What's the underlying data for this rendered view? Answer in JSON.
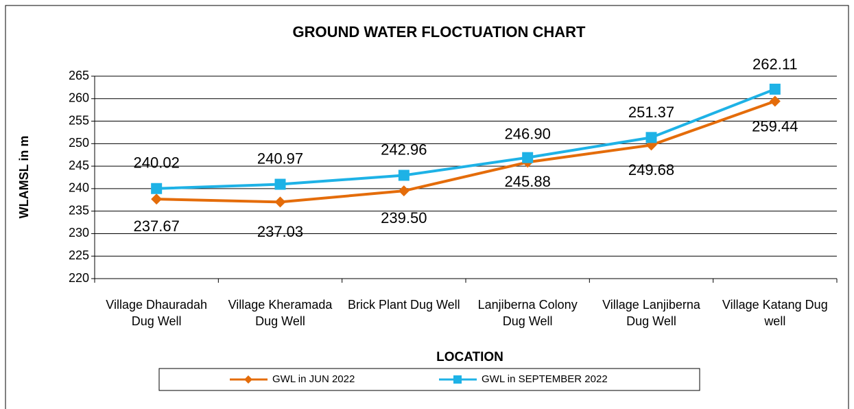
{
  "chart_data": {
    "type": "line",
    "title": "GROUND WATER FLOCTUATION CHART",
    "x_label": "LOCATION",
    "y_label": "WLAMSL in m",
    "categories": [
      "Village Dhauradah Dug Well",
      "Village Kheramada Dug Well",
      "Brick Plant Dug Well",
      "Lanjiberna Colony Dug Well",
      "Village Lanjiberna Dug Well",
      "Village Katang Dug well"
    ],
    "series": [
      {
        "name": "GWL in JUN 2022",
        "color": "#e46c0a",
        "marker": "diamond",
        "values": [
          237.67,
          237.03,
          239.5,
          245.88,
          249.68,
          259.44
        ],
        "value_labels": [
          "237.67",
          "237.03",
          "239.50",
          "245.88",
          "249.68",
          "259.44"
        ]
      },
      {
        "name": "GWL in SEPTEMBER 2022",
        "color": "#1eb2e6",
        "marker": "square",
        "values": [
          240.02,
          240.97,
          242.96,
          246.9,
          251.37,
          262.11
        ],
        "value_labels": [
          "240.02",
          "240.97",
          "242.96",
          "246.90",
          "251.37",
          "262.11"
        ]
      }
    ],
    "ylim": [
      220,
      265
    ],
    "yticks": [
      220,
      225,
      230,
      235,
      240,
      245,
      250,
      255,
      260,
      265
    ],
    "grid": true,
    "legend": "bottom"
  }
}
